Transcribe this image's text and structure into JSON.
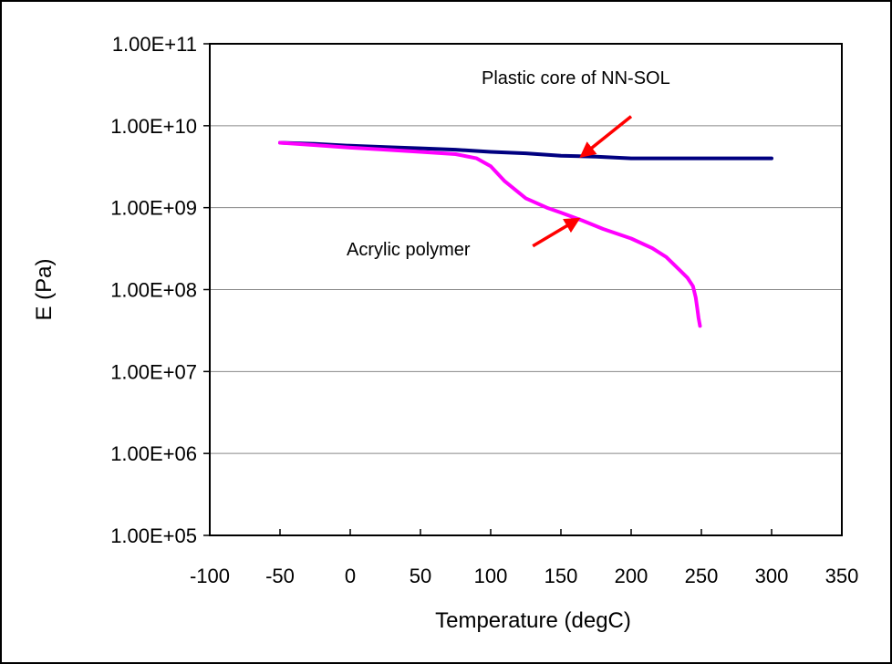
{
  "chart_data": {
    "type": "line",
    "xlabel": "Temperature (degC)",
    "ylabel": "E (Pa)",
    "xlim": [
      -100,
      350
    ],
    "ylim": [
      100000,
      100000000000
    ],
    "y_scale": "log",
    "grid": "horizontal",
    "x_ticks": [
      "-100",
      "-50",
      "0",
      "50",
      "100",
      "150",
      "200",
      "250",
      "300",
      "350"
    ],
    "y_ticks": [
      "1.00E+05",
      "1.00E+06",
      "1.00E+07",
      "1.00E+08",
      "1.00E+09",
      "1.00E+10",
      "1.00E+11"
    ],
    "series": [
      {
        "name": "Plastic core of NN-SOL",
        "color": "#000080",
        "x": [
          -50,
          -25,
          0,
          25,
          50,
          75,
          100,
          125,
          150,
          175,
          200,
          225,
          250,
          275,
          300
        ],
        "y": [
          6200000000,
          6000000000,
          5700000000,
          5500000000,
          5300000000,
          5100000000,
          4800000000,
          4600000000,
          4300000000,
          4200000000,
          4000000000,
          4000000000,
          4000000000,
          4000000000,
          4000000000
        ]
      },
      {
        "name": "Acrylic polymer",
        "color": "#ff00ff",
        "x": [
          -50,
          -25,
          0,
          25,
          50,
          75,
          90,
          100,
          110,
          125,
          140,
          150,
          165,
          180,
          200,
          215,
          225,
          235,
          240,
          244,
          246,
          247,
          248,
          249
        ],
        "y": [
          6200000000,
          5800000000,
          5400000000,
          5100000000,
          4800000000,
          4500000000,
          4000000000,
          3200000000,
          2100000000,
          1300000000,
          1000000000,
          870000000,
          700000000,
          550000000,
          420000000,
          320000000,
          250000000,
          170000000,
          140000000,
          110000000,
          80000000,
          60000000,
          45000000,
          36000000
        ]
      }
    ],
    "annotations": [
      {
        "text": "Plastic core of NN-SOL",
        "arrow_from": [
          200,
          13000000000
        ],
        "arrow_to": [
          165,
          4300000000
        ]
      },
      {
        "text": "Acrylic polymer",
        "arrow_from": [
          130,
          340000000
        ],
        "arrow_to": [
          162,
          720000000
        ]
      }
    ],
    "arrow_color": "#ff0000"
  }
}
